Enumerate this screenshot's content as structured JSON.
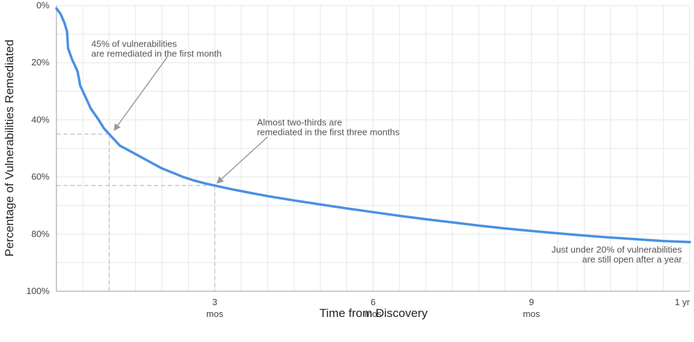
{
  "chart_data": {
    "type": "line",
    "title": "",
    "xlabel": "Time from Discovery",
    "ylabel": "Percentage of Vulnerabilities Remediated",
    "x_unit": "months",
    "xlim": [
      0,
      12
    ],
    "ylim": [
      0,
      100
    ],
    "y_inverted": true,
    "grid": true,
    "x_ticks": [
      {
        "value": 3,
        "line1": "3",
        "line2": "mos"
      },
      {
        "value": 6,
        "line1": "6",
        "line2": "mos"
      },
      {
        "value": 9,
        "line1": "9",
        "line2": "mos"
      },
      {
        "value": 12,
        "line1": "1 yr",
        "line2": ""
      }
    ],
    "y_ticks": [
      {
        "value": 0,
        "label": "0%"
      },
      {
        "value": 20,
        "label": "20%"
      },
      {
        "value": 40,
        "label": "40%"
      },
      {
        "value": 60,
        "label": "60%"
      },
      {
        "value": 80,
        "label": "80%"
      },
      {
        "value": 100,
        "label": "100%"
      }
    ],
    "series": [
      {
        "color": "#4a90e2",
        "points": [
          [
            0,
            1
          ],
          [
            0.08,
            3
          ],
          [
            0.15,
            6
          ],
          [
            0.2,
            9
          ],
          [
            0.22,
            15
          ],
          [
            0.3,
            19
          ],
          [
            0.4,
            23
          ],
          [
            0.45,
            28
          ],
          [
            0.55,
            32
          ],
          [
            0.65,
            36
          ],
          [
            0.8,
            40
          ],
          [
            0.9,
            43
          ],
          [
            1.0,
            45
          ],
          [
            1.1,
            47
          ],
          [
            1.2,
            49
          ],
          [
            1.4,
            51
          ],
          [
            1.6,
            53
          ],
          [
            1.8,
            55
          ],
          [
            2.0,
            57
          ],
          [
            2.2,
            58.5
          ],
          [
            2.4,
            60
          ],
          [
            2.6,
            61.2
          ],
          [
            2.8,
            62.2
          ],
          [
            3.0,
            63
          ],
          [
            3.3,
            64.2
          ],
          [
            3.6,
            65.3
          ],
          [
            4.0,
            66.7
          ],
          [
            4.5,
            68.2
          ],
          [
            5.0,
            69.6
          ],
          [
            5.5,
            71.0
          ],
          [
            6.0,
            72.3
          ],
          [
            6.5,
            73.6
          ],
          [
            7.0,
            74.8
          ],
          [
            7.5,
            75.9
          ],
          [
            8.0,
            77.0
          ],
          [
            8.5,
            78.0
          ],
          [
            9.0,
            78.9
          ],
          [
            9.5,
            79.7
          ],
          [
            10.0,
            80.5
          ],
          [
            10.5,
            81.2
          ],
          [
            11.0,
            81.8
          ],
          [
            11.5,
            82.4
          ],
          [
            12.0,
            82.8
          ]
        ]
      }
    ],
    "reference_lines": [
      {
        "x": 1,
        "y": 45
      },
      {
        "x": 3,
        "y": 63
      }
    ],
    "annotations": [
      {
        "lines": [
          "45% of vulnerabilities",
          "are remediated in the first month"
        ],
        "anchor": "start",
        "text_x": 0.66,
        "text_y": 14.5,
        "arrow_from": [
          2.1,
          18
        ],
        "arrow_to": [
          1.1,
          43.5
        ]
      },
      {
        "lines": [
          "Almost two-thirds are",
          "remediated in the first three months"
        ],
        "anchor": "start",
        "text_x": 3.8,
        "text_y": 42,
        "arrow_from": [
          4.0,
          46
        ],
        "arrow_to": [
          3.05,
          62
        ]
      },
      {
        "lines": [
          "Just under 20% of vulnerabilities",
          "are still open after a year"
        ],
        "anchor": "end",
        "text_x": 11.85,
        "text_y": 86.5
      }
    ]
  }
}
